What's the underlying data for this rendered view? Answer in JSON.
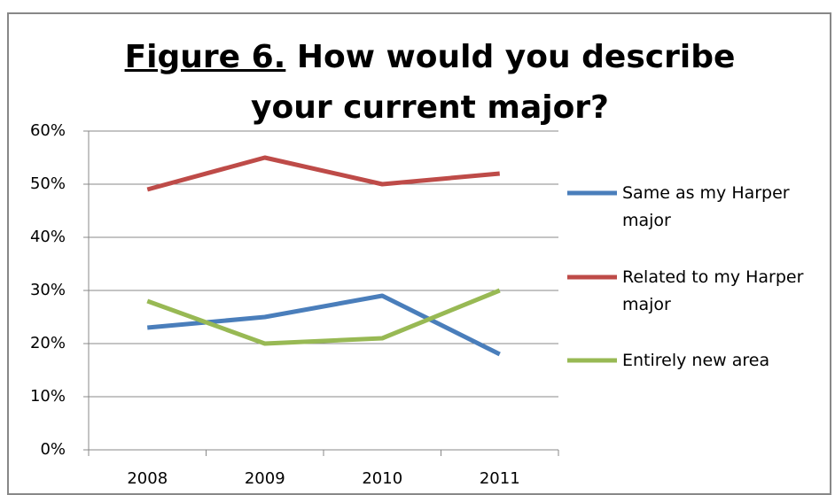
{
  "chart_data": {
    "type": "line",
    "title_label": "Figure 6.",
    "title": "How would you describe your current major?",
    "categories": [
      "2008",
      "2009",
      "2010",
      "2011"
    ],
    "series": [
      {
        "name": "Same as my Harper major",
        "color": "#4a7ebb",
        "values": [
          23,
          25,
          29,
          18
        ]
      },
      {
        "name": "Related to my Harper major",
        "color": "#be4b48",
        "values": [
          49,
          55,
          50,
          52
        ]
      },
      {
        "name": "Entirely new area",
        "color": "#98b954",
        "values": [
          28,
          20,
          21,
          30
        ]
      }
    ],
    "ylim": [
      0,
      60
    ],
    "yticks": [
      {
        "value": 0,
        "label": "0%"
      },
      {
        "value": 10,
        "label": "10%"
      },
      {
        "value": 20,
        "label": "20%"
      },
      {
        "value": 30,
        "label": "30%"
      },
      {
        "value": 40,
        "label": "40%"
      },
      {
        "value": 50,
        "label": "50%"
      },
      {
        "value": 60,
        "label": "60%"
      }
    ],
    "grid": true,
    "legend": "right"
  }
}
